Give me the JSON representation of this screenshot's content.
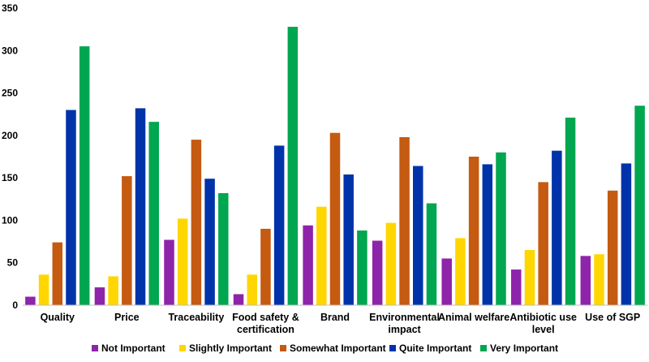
{
  "chart_data": {
    "type": "bar",
    "title": "",
    "xlabel": "",
    "ylabel": "",
    "ylim": [
      0,
      350
    ],
    "yticks": [
      0,
      50,
      100,
      150,
      200,
      250,
      300,
      350
    ],
    "categories": [
      [
        "Quality"
      ],
      [
        "Price"
      ],
      [
        "Traceability"
      ],
      [
        "Food safety &",
        "certification"
      ],
      [
        "Brand"
      ],
      [
        "Environmental",
        "impact"
      ],
      [
        "Animal welfare"
      ],
      [
        "Antibiotic use",
        "level"
      ],
      [
        "Use of SGP"
      ]
    ],
    "series": [
      {
        "name": "Not Important",
        "color": "#8e24aa",
        "values": [
          10,
          21,
          77,
          13,
          94,
          76,
          55,
          42,
          58
        ]
      },
      {
        "name": "Slightly Important",
        "color": "#ffd600",
        "values": [
          36,
          34,
          102,
          36,
          116,
          97,
          79,
          65,
          60
        ]
      },
      {
        "name": "Somewhat Important",
        "color": "#c55a11",
        "values": [
          74,
          152,
          195,
          90,
          203,
          198,
          175,
          145,
          135
        ]
      },
      {
        "name": "Quite Important",
        "color": "#0033aa",
        "values": [
          230,
          232,
          149,
          188,
          154,
          164,
          166,
          182,
          167
        ]
      },
      {
        "name": "Very Important",
        "color": "#00a650",
        "values": [
          305,
          216,
          132,
          328,
          88,
          120,
          180,
          221,
          235
        ]
      }
    ],
    "legend_position": "bottom",
    "grid": false
  }
}
